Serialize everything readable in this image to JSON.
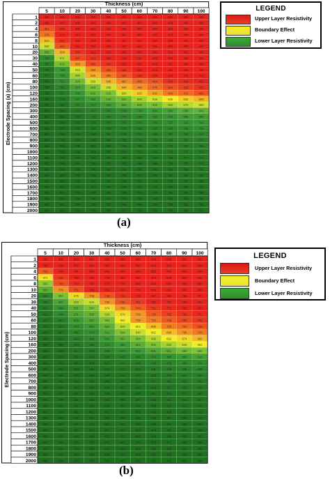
{
  "chart_data": [
    {
      "type": "heatmap",
      "caption": "(a)",
      "title": "Thickness (cm)",
      "xlabel": "Thickness (cm)",
      "ylabel": "Electrode Spacing (a) (cm)",
      "x": [
        "5",
        "10",
        "20",
        "30",
        "40",
        "50",
        "60",
        "70",
        "80",
        "90",
        "100"
      ],
      "y": [
        "1",
        "2",
        "4",
        "6",
        "8",
        "10",
        "20",
        "30",
        "40",
        "50",
        "60",
        "80",
        "100",
        "120",
        "160",
        "200",
        "300",
        "400",
        "500",
        "600",
        "700",
        "800",
        "900",
        "1000",
        "1100",
        "1200",
        "1300",
        "1400",
        "1500",
        "1600",
        "1700",
        "1800",
        "1900",
        "2000"
      ],
      "values": [
        [
          300,
          300,
          300,
          300,
          300,
          300,
          300,
          300,
          300,
          300,
          300
        ],
        [
          400,
          400,
          400,
          400,
          400,
          400,
          400,
          400,
          400,
          400,
          400
        ],
        [
          454,
          429,
          406,
          401,
          401,
          400,
          400,
          400,
          400,
          400,
          400
        ],
        [
          476,
          417,
          413,
          403,
          401,
          401,
          400,
          400,
          400,
          400,
          400
        ],
        [
          510,
          434,
          406,
          403,
          402,
          401,
          401,
          400,
          400,
          400,
          400
        ],
        [
          558,
          454,
          411,
          404,
          403,
          402,
          401,
          401,
          401,
          400,
          400
        ],
        [
          636,
          508,
          434,
          414,
          411,
          406,
          404,
          403,
          402,
          401,
          400
        ],
        [
          729,
          571,
          447,
          434,
          423,
          416,
          411,
          408,
          406,
          404,
          403
        ],
        [
          752,
          615,
          493,
          450,
          434,
          423,
          420,
          416,
          411,
          408,
          406
        ],
        [
          776,
          708,
          553,
          490,
          454,
          434,
          422,
          415,
          411,
          408,
          406
        ],
        [
          777,
          709,
          580,
          505,
          480,
          454,
          434,
          429,
          421,
          416,
          413
        ],
        [
          790,
          727,
          626,
          558,
          508,
          487,
          468,
          454,
          434,
          429,
          423
        ],
        [
          790,
          752,
          679,
          610,
          558,
          508,
          490,
          470,
          454,
          442,
          434
        ],
        [
          795,
          767,
          700,
          642,
          610,
          558,
          520,
          500,
          480,
          470,
          454
        ],
        [
          798,
          778,
          727,
          690,
          642,
          620,
          580,
          558,
          535,
          520,
          508
        ],
        [
          799,
          784,
          747,
          727,
          690,
          656,
          626,
          610,
          580,
          570,
          558
        ],
        [
          800,
          790,
          773,
          757,
          747,
          729,
          710,
          694,
          680,
          656,
          642
        ],
        [
          800,
          795,
          782,
          770,
          757,
          747,
          739,
          720,
          710,
          696,
          690
        ],
        [
          800,
          796,
          787,
          778,
          770,
          757,
          747,
          739,
          727,
          720,
          710
        ],
        [
          800,
          797,
          790,
          784,
          778,
          770,
          765,
          757,
          747,
          739,
          729
        ],
        [
          800,
          798,
          792,
          788,
          782,
          778,
          770,
          765,
          757,
          752,
          747
        ],
        [
          800,
          798,
          793,
          790,
          786,
          782,
          776,
          770,
          765,
          760,
          757
        ],
        [
          800,
          799,
          795,
          792,
          788,
          784,
          780,
          776,
          770,
          767,
          765
        ],
        [
          800,
          799,
          796,
          793,
          790,
          787,
          784,
          781,
          777,
          773,
          770
        ],
        [
          800,
          799,
          797,
          794,
          792,
          789,
          786,
          784,
          780,
          777,
          775
        ],
        [
          800,
          799,
          797,
          795,
          793,
          790,
          788,
          786,
          783,
          780,
          778
        ],
        [
          800,
          799,
          798,
          796,
          794,
          792,
          790,
          788,
          785,
          783,
          781
        ],
        [
          800,
          800,
          798,
          796,
          795,
          793,
          791,
          789,
          787,
          785,
          783
        ],
        [
          800,
          800,
          798,
          797,
          795,
          794,
          792,
          790,
          788,
          787,
          785
        ],
        [
          800,
          800,
          799,
          797,
          796,
          795,
          793,
          792,
          790,
          788,
          787
        ],
        [
          800,
          800,
          799,
          798,
          796,
          795,
          794,
          793,
          791,
          790,
          788
        ],
        [
          800,
          800,
          799,
          798,
          797,
          796,
          795,
          793,
          792,
          791,
          790
        ],
        [
          800,
          800,
          799,
          798,
          797,
          796,
          795,
          794,
          793,
          792,
          791
        ],
        [
          800,
          800,
          799,
          798,
          798,
          797,
          796,
          795,
          794,
          793,
          792
        ]
      ],
      "legend": {
        "title": "LEGEND",
        "items": [
          {
            "label": "Upper Layer Resistivity",
            "color": "#e8221c"
          },
          {
            "label": "Boundary Effect",
            "color": "#f4f02a"
          },
          {
            "label": "Lower Layer Resistivity",
            "color": "#3da23a"
          }
        ]
      }
    },
    {
      "type": "heatmap",
      "caption": "(b)",
      "title": "Thickness (cm)",
      "xlabel": "Thickness (cm)",
      "ylabel": "Electrode Spacing (cm)",
      "x": [
        "5",
        "10",
        "20",
        "30",
        "40",
        "50",
        "60",
        "70",
        "80",
        "90",
        "100"
      ],
      "y": [
        "1",
        "2",
        "4",
        "6",
        "8",
        "10",
        "20",
        "30",
        "40",
        "50",
        "60",
        "80",
        "100",
        "120",
        "160",
        "200",
        "300",
        "400",
        "500",
        "600",
        "700",
        "800",
        "900",
        "1000",
        "1100",
        "1200",
        "1300",
        "1400",
        "1500",
        "1600",
        "1700",
        "1800",
        "1900",
        "2000"
      ],
      "values": [
        [
          799,
          800,
          800,
          800,
          800,
          800,
          800,
          800,
          800,
          800,
          800
        ],
        [
          798,
          799,
          800,
          800,
          800,
          800,
          800,
          800,
          800,
          800,
          800
        ],
        [
          740,
          789,
          791,
          800,
          800,
          800,
          800,
          800,
          800,
          800,
          800
        ],
        [
          671,
          760,
          780,
          794,
          799,
          800,
          800,
          800,
          800,
          800,
          800
        ],
        [
          608,
          748,
          769,
          788,
          797,
          799,
          800,
          800,
          800,
          800,
          800
        ],
        [
          552,
          709,
          751,
          784,
          792,
          797,
          799,
          800,
          800,
          800,
          800
        ],
        [
          456,
          594,
          675,
          708,
          746,
          765,
          778,
          787,
          792,
          795,
          797
        ],
        [
          440,
          525,
          620,
          640,
          708,
          745,
          761,
          780,
          787,
          790,
          792
        ],
        [
          431,
          489,
          551,
          594,
          674,
          708,
          740,
          761,
          771,
          781,
          787
        ],
        [
          423,
          468,
          531,
          560,
          629,
          674,
          706,
          740,
          756,
          765,
          771
        ],
        [
          417,
          440,
          502,
          531,
          594,
          662,
          706,
          720,
          740,
          753,
          762
        ],
        [
          411,
          426,
          474,
          502,
          551,
          629,
          662,
          690,
          720,
          731,
          746
        ],
        [
          407,
          417,
          455,
          474,
          531,
          594,
          640,
          662,
          690,
          708,
          720
        ],
        [
          405,
          413,
          440,
          459,
          502,
          551,
          594,
          629,
          662,
          674,
          690
        ],
        [
          403,
          408,
          426,
          440,
          474,
          506,
          551,
          594,
          620,
          640,
          662
        ],
        [
          402,
          405,
          417,
          426,
          455,
          474,
          502,
          531,
          551,
          580,
          594
        ],
        [
          401,
          403,
          409,
          414,
          426,
          440,
          455,
          474,
          488,
          502,
          518
        ],
        [
          401,
          402,
          405,
          408,
          417,
          426,
          436,
          445,
          455,
          464,
          474
        ],
        [
          400,
          401,
          404,
          406,
          411,
          417,
          423,
          431,
          438,
          445,
          455
        ],
        [
          400,
          401,
          403,
          405,
          408,
          413,
          417,
          423,
          429,
          434,
          440
        ],
        [
          400,
          401,
          402,
          404,
          406,
          409,
          413,
          417,
          421,
          426,
          431
        ],
        [
          400,
          400,
          402,
          403,
          405,
          407,
          410,
          413,
          417,
          421,
          426
        ],
        [
          400,
          400,
          401,
          402,
          404,
          406,
          408,
          411,
          414,
          417,
          420
        ],
        [
          400,
          400,
          401,
          402,
          403,
          405,
          407,
          409,
          411,
          414,
          417
        ],
        [
          400,
          400,
          401,
          401,
          402,
          404,
          406,
          408,
          410,
          412,
          414
        ],
        [
          400,
          400,
          401,
          401,
          402,
          403,
          405,
          406,
          408,
          410,
          412
        ],
        [
          400,
          400,
          400,
          401,
          402,
          403,
          404,
          405,
          407,
          409,
          410
        ],
        [
          400,
          400,
          400,
          401,
          401,
          402,
          403,
          405,
          406,
          408,
          409
        ],
        [
          400,
          400,
          400,
          401,
          401,
          402,
          403,
          404,
          405,
          407,
          408
        ],
        [
          400,
          400,
          400,
          400,
          401,
          402,
          402,
          403,
          405,
          406,
          407
        ],
        [
          400,
          400,
          400,
          400,
          401,
          401,
          402,
          403,
          404,
          405,
          406
        ],
        [
          400,
          400,
          400,
          400,
          401,
          401,
          402,
          402,
          403,
          404,
          405
        ],
        [
          400,
          400,
          400,
          400,
          400,
          401,
          401,
          402,
          403,
          404,
          405
        ],
        [
          400,
          400,
          400,
          400,
          400,
          401,
          401,
          402,
          402,
          403,
          404
        ]
      ],
      "legend": {
        "title": "LEGEND",
        "items": [
          {
            "label": "Upper Layer Resistivity",
            "color": "#e8221c"
          },
          {
            "label": "Boundary Effect",
            "color": "#f4f02a"
          },
          {
            "label": "Lower Layer Resistivity",
            "color": "#3da23a"
          }
        ]
      }
    }
  ]
}
